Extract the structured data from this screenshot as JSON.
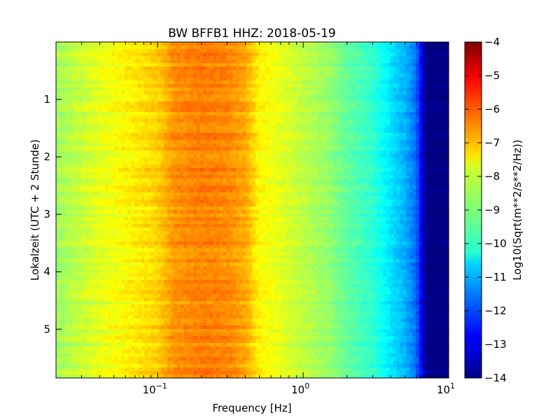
{
  "chart_data": {
    "type": "heatmap",
    "title": "BW BFFB1 HHZ: 2018-05-19",
    "xlabel": "Frequency [Hz]",
    "ylabel": "Lokalzeit (UTC + 2 Stunde)",
    "x_scale": "log",
    "xlim": [
      0.02,
      10
    ],
    "ylim": [
      5.85,
      0
    ],
    "x_ticks": [
      {
        "base": "10",
        "exp": "−1",
        "value": 0.1
      },
      {
        "base": "10",
        "exp": "0",
        "value": 1
      },
      {
        "base": "10",
        "exp": "1",
        "value": 10
      }
    ],
    "y_ticks": [
      {
        "label": "1",
        "value": 1
      },
      {
        "label": "2",
        "value": 2
      },
      {
        "label": "3",
        "value": 3
      },
      {
        "label": "4",
        "value": 4
      },
      {
        "label": "5",
        "value": 5
      }
    ],
    "colorbar": {
      "label": "Log10(Sqrt(m**2/s**2/Hz))",
      "range": [
        -14,
        -4
      ],
      "colormap": "jet",
      "ticks": [
        "−4",
        "−5",
        "−6",
        "−7",
        "−8",
        "−9",
        "−10",
        "−11",
        "−12",
        "−13",
        "−14"
      ]
    },
    "spectrum_profile": {
      "frequency_hz": [
        0.02,
        0.04,
        0.07,
        0.1,
        0.13,
        0.2,
        0.3,
        0.4,
        0.5,
        0.7,
        1.0,
        1.5,
        2.0,
        3.0,
        4.0,
        5.0,
        6.0,
        7.0,
        10.0
      ],
      "value": [
        -8.7,
        -8.0,
        -7.6,
        -7.3,
        -6.7,
        -6.5,
        -6.6,
        -6.9,
        -7.7,
        -8.0,
        -8.4,
        -8.8,
        -9.3,
        -9.8,
        -10.5,
        -11.0,
        -11.7,
        -14.0,
        -14.0
      ]
    }
  }
}
